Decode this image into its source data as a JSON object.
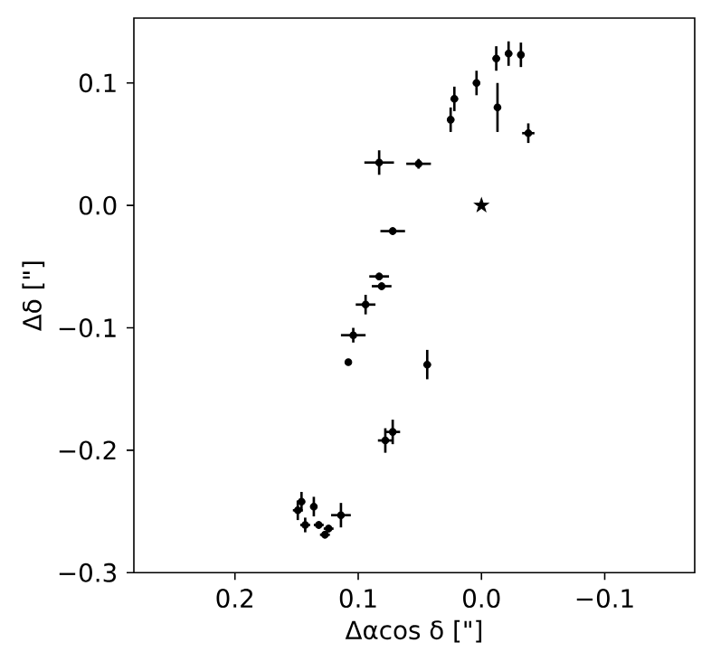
{
  "chart_data": {
    "type": "scatter",
    "xlabel": "Δαcos δ [\"]",
    "ylabel": "Δδ [\"]",
    "xlim": [
      0.282,
      -0.173
    ],
    "ylim": [
      -0.3,
      0.153
    ],
    "xticks": [
      0.2,
      0.1,
      {
        "value": 0,
        "label": "0.0"
      },
      {
        "value": -0.1,
        "label": "−0.1"
      }
    ],
    "yticks": [
      {
        "value": -0.3,
        "label": "−0.3"
      },
      {
        "value": -0.2,
        "label": "−0.2"
      },
      {
        "value": -0.1,
        "label": "−0.1"
      },
      {
        "value": 0,
        "label": "0.0"
      },
      0.1
    ],
    "series": [
      {
        "color": "#000000",
        "marker": "circle",
        "x": [
          0.025,
          0.022,
          0.004,
          -0.012,
          -0.022,
          -0.032,
          -0.013,
          -0.038,
          0.083,
          0.051,
          0.072,
          0.083,
          0.081,
          0.094,
          0.104,
          0.108,
          0.044,
          0.072,
          0.078,
          0.146,
          0.136,
          0.143,
          0.132,
          0.127,
          0.124,
          0.114,
          0.149
        ],
        "values": [
          0.07,
          0.087,
          0.1,
          0.12,
          0.124,
          0.123,
          0.08,
          0.059,
          0.035,
          0.034,
          -0.021,
          -0.058,
          -0.066,
          -0.081,
          -0.106,
          -0.128,
          -0.13,
          -0.185,
          -0.192,
          -0.242,
          -0.246,
          -0.261,
          -0.261,
          -0.269,
          -0.264,
          -0.253,
          -0.249
        ],
        "xerrors": [
          0.003,
          0.003,
          0.003,
          0.003,
          0.003,
          0.003,
          0.003,
          0.005,
          0.012,
          0.01,
          0.01,
          0.008,
          0.008,
          0.008,
          0.01,
          null,
          0.003,
          0.006,
          0.006,
          0.003,
          0.003,
          0.004,
          0.004,
          0.004,
          0.004,
          0.008,
          0.004
        ],
        "errors": [
          0.01,
          0.01,
          0.01,
          0.01,
          0.01,
          0.01,
          0.02,
          0.008,
          0.01,
          0.004,
          0.003,
          0.003,
          0.003,
          0.008,
          0.006,
          null,
          0.012,
          0.01,
          0.01,
          0.008,
          0.008,
          0.006,
          0.003,
          0.003,
          0.003,
          0.01,
          0.008
        ]
      },
      {
        "color": "#000000",
        "marker": "star",
        "x": [
          0.0
        ],
        "values": [
          0.0
        ]
      }
    ]
  }
}
